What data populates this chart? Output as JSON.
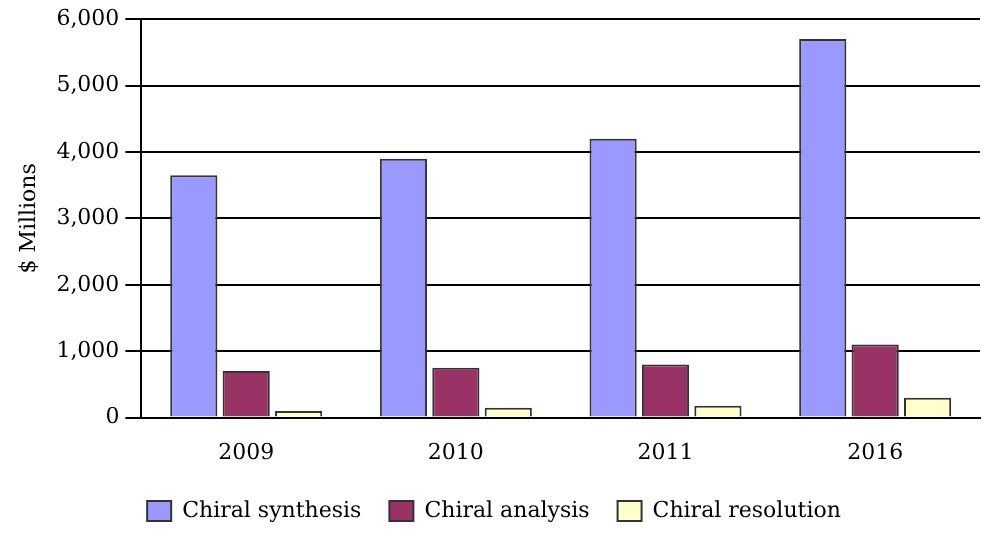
{
  "chart_data": {
    "type": "bar",
    "ylabel": "$ Millions",
    "categories": [
      "2009",
      "2010",
      "2011",
      "2016"
    ],
    "series": [
      {
        "name": "Chiral synthesis",
        "color": "#9999ff",
        "values": [
          3650,
          3900,
          4200,
          5700
        ]
      },
      {
        "name": "Chiral analysis",
        "color": "#993366",
        "values": [
          700,
          750,
          800,
          1100
        ]
      },
      {
        "name": "Chiral resolution",
        "color": "#ffffcc",
        "values": [
          100,
          150,
          180,
          300
        ]
      }
    ],
    "ylim": [
      0,
      6000
    ],
    "yticks": [
      {
        "value": 0,
        "label": "0"
      },
      {
        "value": 1000,
        "label": "1,000"
      },
      {
        "value": 2000,
        "label": "2,000"
      },
      {
        "value": 3000,
        "label": "3,000"
      },
      {
        "value": 4000,
        "label": "4,000"
      },
      {
        "value": 5000,
        "label": "5,000"
      },
      {
        "value": 6000,
        "label": "6,000"
      }
    ],
    "grid": "y",
    "legend": "bottom"
  }
}
